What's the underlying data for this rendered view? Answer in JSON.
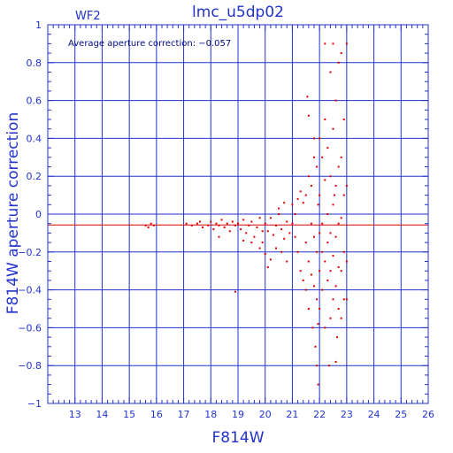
{
  "chart_data": {
    "type": "scatter",
    "title": "lmc_u5dp02",
    "panel_label": "WF2",
    "annotation": "Average aperture correction: −0.057",
    "xlabel": "F814W",
    "ylabel": "F814W aperture correction",
    "xlim": [
      12,
      26
    ],
    "ylim": [
      -1,
      1
    ],
    "x_ticks": [
      13,
      14,
      15,
      16,
      17,
      18,
      19,
      20,
      21,
      22,
      23,
      24,
      25,
      26
    ],
    "y_ticks": [
      -1,
      -0.8,
      -0.6,
      -0.4,
      -0.2,
      0,
      0.2,
      0.4,
      0.6,
      0.8,
      1
    ],
    "y_tick_labels": [
      "−1",
      "−0.8",
      "−0.6",
      "−0.4",
      "−0.2",
      "0",
      "0.2",
      "0.4",
      "0.6",
      "0.8",
      "1"
    ],
    "grid": true,
    "reference_line": {
      "y": -0.057,
      "color": "#dd0000"
    },
    "zero_line": {
      "y": 0,
      "color": "#0000aa"
    },
    "series": [
      {
        "color": "#dd0000",
        "points": [
          [
            15.6,
            -0.06
          ],
          [
            15.7,
            -0.07
          ],
          [
            15.8,
            -0.05
          ],
          [
            15.9,
            -0.06
          ],
          [
            17.1,
            -0.05
          ],
          [
            17.3,
            -0.06
          ],
          [
            17.5,
            -0.05
          ],
          [
            17.6,
            -0.04
          ],
          [
            17.7,
            -0.07
          ],
          [
            17.9,
            -0.06
          ],
          [
            18.0,
            -0.04
          ],
          [
            18.1,
            -0.08
          ],
          [
            18.2,
            -0.05
          ],
          [
            18.3,
            -0.06
          ],
          [
            18.4,
            -0.03
          ],
          [
            18.5,
            -0.07
          ],
          [
            18.6,
            -0.05
          ],
          [
            18.7,
            -0.09
          ],
          [
            18.8,
            -0.04
          ],
          [
            18.9,
            -0.06
          ],
          [
            18.9,
            -0.41
          ],
          [
            18.3,
            -0.12
          ],
          [
            19.0,
            -0.05
          ],
          [
            19.1,
            -0.08
          ],
          [
            19.2,
            -0.03
          ],
          [
            19.3,
            -0.1
          ],
          [
            19.4,
            -0.06
          ],
          [
            19.5,
            -0.04
          ],
          [
            19.6,
            -0.12
          ],
          [
            19.7,
            -0.07
          ],
          [
            19.8,
            -0.02
          ],
          [
            19.9,
            -0.09
          ],
          [
            19.2,
            -0.14
          ],
          [
            19.5,
            -0.15
          ],
          [
            19.8,
            -0.18
          ],
          [
            19.9,
            -0.15
          ],
          [
            20.0,
            -0.05
          ],
          [
            20.1,
            -0.09
          ],
          [
            20.2,
            -0.02
          ],
          [
            20.3,
            -0.11
          ],
          [
            20.4,
            -0.06
          ],
          [
            20.5,
            0.0
          ],
          [
            20.6,
            -0.08
          ],
          [
            20.7,
            -0.13
          ],
          [
            20.8,
            -0.04
          ],
          [
            20.9,
            -0.1
          ],
          [
            20.0,
            -0.21
          ],
          [
            20.2,
            -0.24
          ],
          [
            20.4,
            -0.18
          ],
          [
            20.6,
            -0.2
          ],
          [
            20.8,
            -0.25
          ],
          [
            20.1,
            -0.28
          ],
          [
            20.5,
            0.03
          ],
          [
            20.7,
            0.06
          ],
          [
            21.0,
            -0.05
          ],
          [
            21.0,
            0.05
          ],
          [
            21.1,
            0.0
          ],
          [
            21.1,
            -0.12
          ],
          [
            21.2,
            -0.2
          ],
          [
            21.2,
            0.08
          ],
          [
            21.3,
            -0.3
          ],
          [
            21.3,
            0.12
          ],
          [
            21.4,
            -0.35
          ],
          [
            21.4,
            0.06
          ],
          [
            21.5,
            0.1
          ],
          [
            21.5,
            -0.15
          ],
          [
            21.5,
            -0.4
          ],
          [
            21.6,
            0.2
          ],
          [
            21.6,
            -0.25
          ],
          [
            21.6,
            -0.5
          ],
          [
            21.7,
            0.15
          ],
          [
            21.7,
            -0.05
          ],
          [
            21.7,
            -0.32
          ],
          [
            21.8,
            0.3
          ],
          [
            21.8,
            -0.12
          ],
          [
            21.8,
            -0.38
          ],
          [
            21.9,
            0.25
          ],
          [
            21.9,
            -0.2
          ],
          [
            21.9,
            -0.45
          ],
          [
            21.95,
            0.05
          ],
          [
            21.95,
            -0.58
          ],
          [
            21.55,
            0.62
          ],
          [
            21.6,
            0.52
          ],
          [
            21.8,
            0.4
          ],
          [
            21.75,
            -0.6
          ],
          [
            21.85,
            -0.7
          ],
          [
            21.9,
            -0.8
          ],
          [
            21.95,
            -0.9
          ],
          [
            22.0,
            0.4
          ],
          [
            22.0,
            0.1
          ],
          [
            22.0,
            -0.1
          ],
          [
            22.0,
            -0.3
          ],
          [
            22.0,
            -0.5
          ],
          [
            22.1,
            0.3
          ],
          [
            22.1,
            -0.05
          ],
          [
            22.1,
            -0.2
          ],
          [
            22.1,
            -0.4
          ],
          [
            22.2,
            0.9
          ],
          [
            22.2,
            0.5
          ],
          [
            22.2,
            0.18
          ],
          [
            22.2,
            -0.25
          ],
          [
            22.2,
            -0.6
          ],
          [
            22.3,
            0.35
          ],
          [
            22.3,
            0.0
          ],
          [
            22.3,
            -0.15
          ],
          [
            22.3,
            -0.35
          ],
          [
            22.4,
            0.75
          ],
          [
            22.4,
            0.2
          ],
          [
            22.4,
            -0.1
          ],
          [
            22.4,
            -0.3
          ],
          [
            22.4,
            -0.55
          ],
          [
            22.5,
            0.9
          ],
          [
            22.5,
            0.45
          ],
          [
            22.5,
            0.05
          ],
          [
            22.5,
            -0.22
          ],
          [
            22.5,
            -0.45
          ],
          [
            22.6,
            0.6
          ],
          [
            22.6,
            0.15
          ],
          [
            22.6,
            -0.12
          ],
          [
            22.6,
            -0.38
          ],
          [
            22.6,
            -0.78
          ],
          [
            22.7,
            0.8
          ],
          [
            22.7,
            0.25
          ],
          [
            22.7,
            -0.05
          ],
          [
            22.7,
            -0.28
          ],
          [
            22.7,
            -0.5
          ],
          [
            22.8,
            0.85
          ],
          [
            22.8,
            0.3
          ],
          [
            22.8,
            -0.02
          ],
          [
            22.8,
            -0.3
          ],
          [
            22.8,
            -0.55
          ],
          [
            22.9,
            0.5
          ],
          [
            22.9,
            0.1
          ],
          [
            22.9,
            -0.2
          ],
          [
            22.9,
            -0.45
          ],
          [
            23.0,
            0.9
          ],
          [
            23.0,
            0.15
          ],
          [
            23.0,
            -0.25
          ],
          [
            23.0,
            -0.45
          ],
          [
            22.35,
            -0.8
          ],
          [
            22.55,
            0.1
          ],
          [
            22.65,
            -0.65
          ]
        ]
      }
    ]
  }
}
